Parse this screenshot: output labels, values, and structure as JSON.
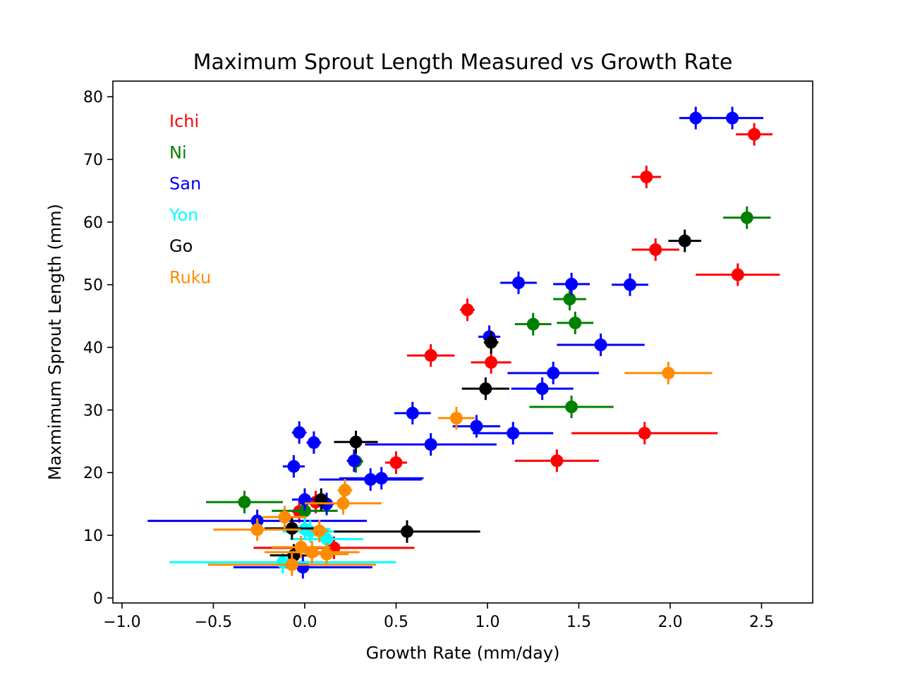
{
  "chart_data": {
    "type": "scatter",
    "title": "Maximum Sprout Length Measured vs Growth Rate",
    "xlabel": "Growth Rate (mm/day)",
    "ylabel": "Maxmimum Sprout Length (mm)",
    "xlim": [
      -1.05,
      2.78
    ],
    "ylim": [
      -0.8,
      82.5
    ],
    "xticks": [
      -1.0,
      -0.5,
      0.0,
      0.5,
      1.0,
      1.5,
      2.0,
      2.5
    ],
    "xtick_labels": [
      "−1.0",
      "−0.5",
      "0.0",
      "0.5",
      "1.0",
      "1.5",
      "2.0",
      "2.5"
    ],
    "yticks": [
      0,
      10,
      20,
      30,
      40,
      50,
      60,
      70,
      80
    ],
    "ytick_labels": [
      "0",
      "10",
      "20",
      "30",
      "40",
      "50",
      "60",
      "70",
      "80"
    ],
    "grid": false,
    "legend_position": "top-left",
    "error_bars": true,
    "series": [
      {
        "name": "Ichi",
        "color": "#ff0000",
        "points": [
          {
            "x": 2.46,
            "y": 74.0,
            "xerr": 0.1,
            "yerr": 1.8
          },
          {
            "x": 1.87,
            "y": 67.2,
            "xerr": 0.08,
            "yerr": 1.8
          },
          {
            "x": 1.92,
            "y": 55.6,
            "xerr": 0.13,
            "yerr": 1.8
          },
          {
            "x": 2.37,
            "y": 51.6,
            "xerr": 0.23,
            "yerr": 1.8
          },
          {
            "x": 0.89,
            "y": 46.0,
            "xerr": 0.04,
            "yerr": 1.8
          },
          {
            "x": 0.69,
            "y": 38.7,
            "xerr": 0.13,
            "yerr": 1.8
          },
          {
            "x": 1.02,
            "y": 37.6,
            "xerr": 0.11,
            "yerr": 1.8
          },
          {
            "x": 1.86,
            "y": 26.3,
            "xerr": 0.4,
            "yerr": 1.8
          },
          {
            "x": 1.38,
            "y": 21.9,
            "xerr": 0.23,
            "yerr": 1.8
          },
          {
            "x": 0.5,
            "y": 21.6,
            "xerr": 0.06,
            "yerr": 1.8
          },
          {
            "x": 0.06,
            "y": 15.3,
            "xerr": 0.08,
            "yerr": 1.8
          },
          {
            "x": -0.03,
            "y": 13.8,
            "xerr": 0.04,
            "yerr": 1.8
          },
          {
            "x": 0.16,
            "y": 8.0,
            "xerr": 0.44,
            "yerr": 1.8
          }
        ]
      },
      {
        "name": "Ni",
        "color": "#008000",
        "points": [
          {
            "x": 2.42,
            "y": 60.7,
            "xerr": 0.13,
            "yerr": 1.8
          },
          {
            "x": 1.45,
            "y": 47.7,
            "xerr": 0.09,
            "yerr": 1.8
          },
          {
            "x": 1.25,
            "y": 43.7,
            "xerr": 0.1,
            "yerr": 1.8
          },
          {
            "x": 1.48,
            "y": 43.9,
            "xerr": 0.1,
            "yerr": 1.8
          },
          {
            "x": 1.46,
            "y": 30.5,
            "xerr": 0.23,
            "yerr": 1.8
          },
          {
            "x": 0.28,
            "y": 21.8,
            "xerr": 0.04,
            "yerr": 1.8
          },
          {
            "x": -0.33,
            "y": 15.3,
            "xerr": 0.21,
            "yerr": 1.8
          },
          {
            "x": 0.0,
            "y": 13.9,
            "xerr": 0.18,
            "yerr": 1.8
          }
        ]
      },
      {
        "name": "San",
        "color": "#0000ff",
        "points": [
          {
            "x": 2.14,
            "y": 76.6,
            "xerr": 0.09,
            "yerr": 1.8
          },
          {
            "x": 2.34,
            "y": 76.6,
            "xerr": 0.17,
            "yerr": 1.8
          },
          {
            "x": 1.17,
            "y": 50.3,
            "xerr": 0.1,
            "yerr": 1.8
          },
          {
            "x": 1.46,
            "y": 50.1,
            "xerr": 0.1,
            "yerr": 1.8
          },
          {
            "x": 1.78,
            "y": 50.0,
            "xerr": 0.1,
            "yerr": 1.8
          },
          {
            "x": 1.01,
            "y": 41.7,
            "xerr": 0.06,
            "yerr": 1.8
          },
          {
            "x": 1.62,
            "y": 40.4,
            "xerr": 0.24,
            "yerr": 1.8
          },
          {
            "x": 1.36,
            "y": 35.9,
            "xerr": 0.25,
            "yerr": 1.8
          },
          {
            "x": 1.3,
            "y": 33.4,
            "xerr": 0.17,
            "yerr": 1.8
          },
          {
            "x": 0.59,
            "y": 29.5,
            "xerr": 0.1,
            "yerr": 1.8
          },
          {
            "x": 0.94,
            "y": 27.4,
            "xerr": 0.13,
            "yerr": 1.8
          },
          {
            "x": -0.03,
            "y": 26.4,
            "xerr": 0.04,
            "yerr": 1.8
          },
          {
            "x": 1.14,
            "y": 26.3,
            "xerr": 0.22,
            "yerr": 1.8
          },
          {
            "x": 0.05,
            "y": 24.8,
            "xerr": 0.04,
            "yerr": 1.8
          },
          {
            "x": 0.69,
            "y": 24.5,
            "xerr": 0.36,
            "yerr": 1.8
          },
          {
            "x": 0.27,
            "y": 21.9,
            "xerr": 0.04,
            "yerr": 1.8
          },
          {
            "x": -0.06,
            "y": 21.0,
            "xerr": 0.06,
            "yerr": 1.8
          },
          {
            "x": 0.36,
            "y": 18.9,
            "xerr": 0.28,
            "yerr": 1.8
          },
          {
            "x": 0.42,
            "y": 19.1,
            "xerr": 0.23,
            "yerr": 1.8
          },
          {
            "x": 0.0,
            "y": 15.7,
            "xerr": 0.07,
            "yerr": 1.8
          },
          {
            "x": 0.12,
            "y": 15.0,
            "xerr": 0.04,
            "yerr": 1.8
          },
          {
            "x": -0.26,
            "y": 12.3,
            "xerr": 0.6,
            "yerr": 1.8
          },
          {
            "x": -0.01,
            "y": 4.9,
            "xerr": 0.38,
            "yerr": 1.8
          }
        ]
      },
      {
        "name": "Yon",
        "color": "#00ffff",
        "points": [
          {
            "x": 0.0,
            "y": 11.0,
            "xerr": 0.14,
            "yerr": 1.8
          },
          {
            "x": 0.03,
            "y": 10.6,
            "xerr": 0.15,
            "yerr": 1.8
          },
          {
            "x": 0.12,
            "y": 9.4,
            "xerr": 0.2,
            "yerr": 1.8
          },
          {
            "x": -0.12,
            "y": 5.7,
            "xerr": 0.62,
            "yerr": 1.8
          }
        ]
      },
      {
        "name": "Go",
        "color": "#000000",
        "points": [
          {
            "x": 2.08,
            "y": 57.0,
            "xerr": 0.09,
            "yerr": 1.8
          },
          {
            "x": 1.02,
            "y": 40.8,
            "xerr": 0.04,
            "yerr": 1.8
          },
          {
            "x": 0.99,
            "y": 33.4,
            "xerr": 0.13,
            "yerr": 1.8
          },
          {
            "x": 0.28,
            "y": 24.9,
            "xerr": 0.12,
            "yerr": 1.8
          },
          {
            "x": 0.09,
            "y": 15.7,
            "xerr": 0.04,
            "yerr": 1.8
          },
          {
            "x": -0.07,
            "y": 11.1,
            "xerr": 0.15,
            "yerr": 1.8
          },
          {
            "x": 0.56,
            "y": 10.6,
            "xerr": 0.4,
            "yerr": 1.8
          },
          {
            "x": -0.06,
            "y": 6.8,
            "xerr": 0.13,
            "yerr": 1.8
          }
        ]
      },
      {
        "name": "Ruku",
        "color": "#ff8c00",
        "points": [
          {
            "x": 1.99,
            "y": 35.9,
            "xerr": 0.24,
            "yerr": 1.8
          },
          {
            "x": 0.83,
            "y": 28.7,
            "xerr": 0.1,
            "yerr": 1.8
          },
          {
            "x": 0.22,
            "y": 17.2,
            "xerr": 0.04,
            "yerr": 1.8
          },
          {
            "x": 0.21,
            "y": 15.1,
            "xerr": 0.21,
            "yerr": 1.8
          },
          {
            "x": -0.11,
            "y": 12.9,
            "xerr": 0.12,
            "yerr": 1.8
          },
          {
            "x": -0.26,
            "y": 10.9,
            "xerr": 0.24,
            "yerr": 1.8
          },
          {
            "x": 0.08,
            "y": 10.7,
            "xerr": 0.05,
            "yerr": 1.8
          },
          {
            "x": -0.02,
            "y": 8.1,
            "xerr": 0.16,
            "yerr": 1.8
          },
          {
            "x": 0.04,
            "y": 7.3,
            "xerr": 0.26,
            "yerr": 1.8
          },
          {
            "x": 0.12,
            "y": 7.0,
            "xerr": 0.12,
            "yerr": 1.8
          },
          {
            "x": -0.07,
            "y": 5.3,
            "xerr": 0.46,
            "yerr": 1.8
          }
        ]
      }
    ]
  }
}
